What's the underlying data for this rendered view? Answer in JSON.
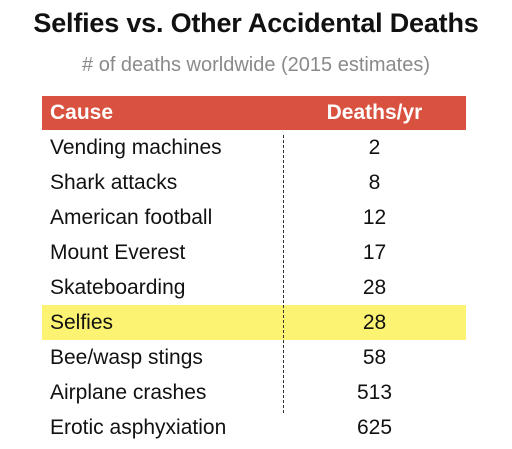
{
  "chart_data": {
    "type": "table",
    "title": "Selfies vs. Other Accidental Deaths",
    "subtitle": "# of deaths worldwide (2015 estimates)",
    "columns": [
      "Cause",
      "Deaths/yr"
    ],
    "rows": [
      {
        "cause": "Vending machines",
        "deaths": 2
      },
      {
        "cause": "Shark attacks",
        "deaths": 8
      },
      {
        "cause": "American football",
        "deaths": 12
      },
      {
        "cause": "Mount Everest",
        "deaths": 17
      },
      {
        "cause": "Skateboarding",
        "deaths": 28
      },
      {
        "cause": "Selfies",
        "deaths": 28,
        "highlighted": true
      },
      {
        "cause": "Bee/wasp stings",
        "deaths": 58
      },
      {
        "cause": "Airplane crashes",
        "deaths": 513
      },
      {
        "cause": "Erotic asphyxiation",
        "deaths": 625
      }
    ],
    "colors": {
      "header_background": "#d9513f",
      "header_text": "#ffffff",
      "highlight": "#fbf371",
      "subtitle": "#8a8a8a"
    }
  }
}
